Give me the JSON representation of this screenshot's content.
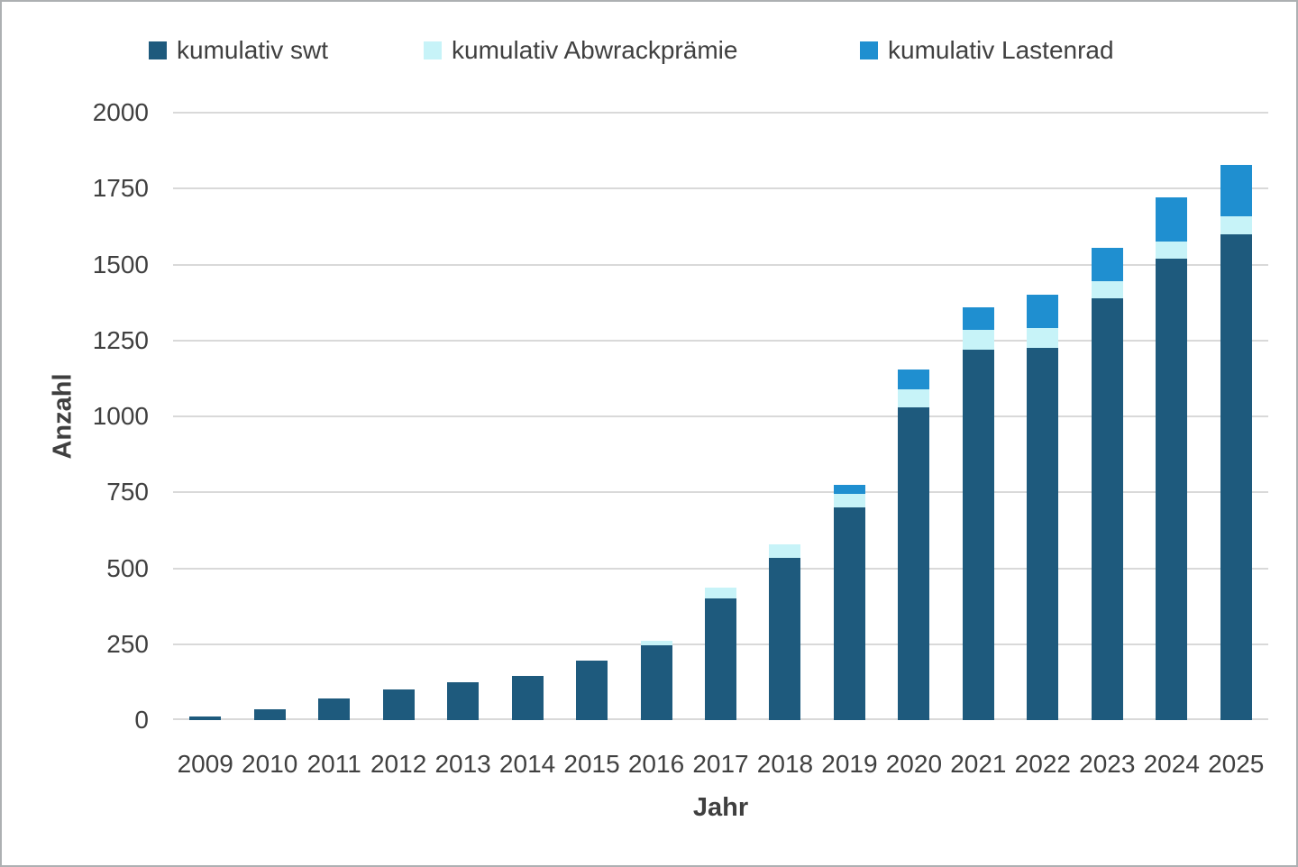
{
  "chart_data": {
    "type": "bar",
    "subtype": "stacked",
    "title": "",
    "xlabel": "Jahr",
    "ylabel": "Anzahl",
    "categories": [
      "2009",
      "2010",
      "2011",
      "2012",
      "2013",
      "2014",
      "2015",
      "2016",
      "2017",
      "2018",
      "2019",
      "2020",
      "2021",
      "2022",
      "2023",
      "2024",
      "2025"
    ],
    "series": [
      {
        "name": "kumulativ swt",
        "color": "#1E5A7D",
        "values": [
          12,
          37,
          70,
          100,
          125,
          145,
          195,
          245,
          400,
          535,
          700,
          1030,
          1220,
          1225,
          1390,
          1520,
          1600
        ]
      },
      {
        "name": "kumulativ Abwrackprämie",
        "color": "#C7F3F8",
        "values": [
          0,
          0,
          0,
          0,
          0,
          0,
          0,
          15,
          35,
          45,
          45,
          60,
          65,
          65,
          55,
          55,
          60
        ]
      },
      {
        "name": "kumulativ Lastenrad",
        "color": "#1F8FD0",
        "values": [
          0,
          0,
          0,
          0,
          0,
          0,
          0,
          0,
          0,
          0,
          30,
          65,
          75,
          110,
          110,
          145,
          170
        ]
      }
    ],
    "stacked_totals": [
      12,
      37,
      70,
      100,
      125,
      145,
      195,
      260,
      435,
      580,
      775,
      1155,
      1360,
      1400,
      1555,
      1720,
      1830
    ],
    "y_ticks": [
      0,
      250,
      500,
      750,
      1000,
      1250,
      1500,
      1750,
      2000
    ],
    "ylim": [
      0,
      2000
    ],
    "grid": true,
    "legend_position": "top",
    "grid_color": "#d9d9d9",
    "text_color": "#404040",
    "frame_color": "#adb0b2"
  }
}
